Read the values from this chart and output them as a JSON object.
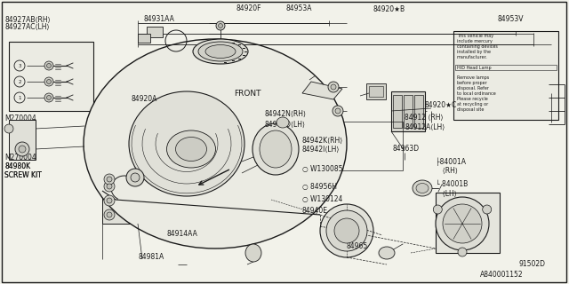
{
  "bg_color": "#f2f2ea",
  "line_color": "#1a1a1a",
  "diagram_id": "A840001152",
  "sub_id": "91502D",
  "warning_lines": [
    "This vehicle may",
    "include mercury",
    "containing devices",
    "installed by the",
    "manufacturer.",
    "",
    "HID Head Lamp",
    "",
    "Remove lamps",
    "before proper",
    "disposal. Refer",
    "to local ordinance",
    "Please recycle",
    "at recycling or",
    "disposal site"
  ]
}
